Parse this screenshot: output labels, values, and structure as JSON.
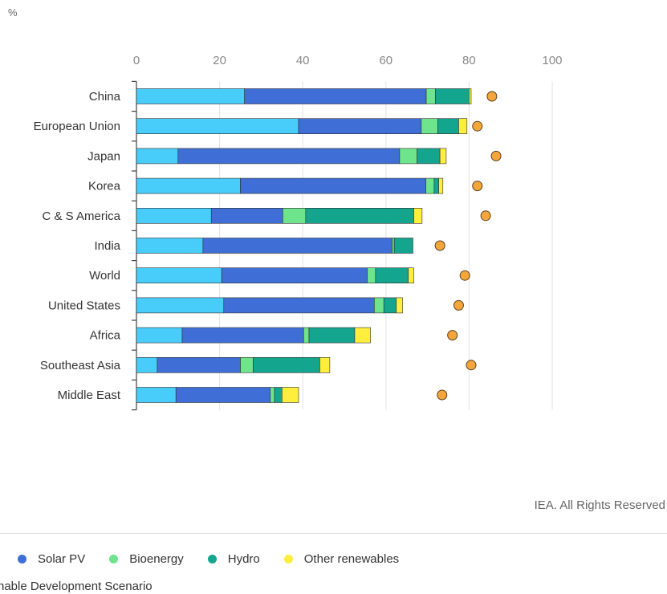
{
  "unit_label": "%",
  "credit": "IEA. All Rights Reserved",
  "legend": {
    "items": [
      {
        "label": "Solar PV",
        "color": "#3f6fd6"
      },
      {
        "label": "Bioenergy",
        "color": "#6ee48c"
      },
      {
        "label": "Hydro",
        "color": "#14a58f"
      },
      {
        "label": "Other renewables",
        "color": "#ffee3c"
      }
    ],
    "note": "nable Development Scenario"
  },
  "chart_data": {
    "type": "bar",
    "orientation": "horizontal",
    "stacked": true,
    "xlim": [
      0,
      100
    ],
    "xticks": [
      0,
      20,
      40,
      60,
      80,
      100
    ],
    "grid": true,
    "categories": [
      "China",
      "European Union",
      "Japan",
      "Korea",
      "C & S America",
      "India",
      "World",
      "United States",
      "Africa",
      "Southeast Asia",
      "Middle East"
    ],
    "series": [
      {
        "color": "#48cdfa",
        "values": [
          26,
          39,
          10,
          25,
          18,
          16,
          20.5,
          21,
          11,
          5,
          9.5
        ]
      },
      {
        "name": "Solar PV",
        "color": "#3f6fd6",
        "values": [
          43.7,
          29.5,
          53.3,
          44.6,
          17.2,
          45.5,
          35,
          36.2,
          29.2,
          20,
          22.7
        ]
      },
      {
        "name": "Bioenergy",
        "color": "#6ee48c",
        "values": [
          2.2,
          4,
          4.2,
          2,
          5.5,
          0.5,
          2,
          2.3,
          1.3,
          3.1,
          1
        ]
      },
      {
        "name": "Hydro",
        "color": "#14a58f",
        "values": [
          8.1,
          5,
          5.5,
          1.1,
          26,
          4.5,
          7.9,
          3,
          11,
          16,
          1.8
        ]
      },
      {
        "name": "Other renewables",
        "color": "#ffee3c",
        "values": [
          0.5,
          2,
          1.5,
          1,
          2,
          0,
          1.3,
          1.5,
          3.8,
          2.4,
          4
        ]
      }
    ],
    "markers": {
      "color": "#f4a63a",
      "values": [
        85.5,
        82,
        86.5,
        82,
        84,
        73,
        79,
        77.5,
        76,
        80.5,
        73.5
      ]
    }
  }
}
